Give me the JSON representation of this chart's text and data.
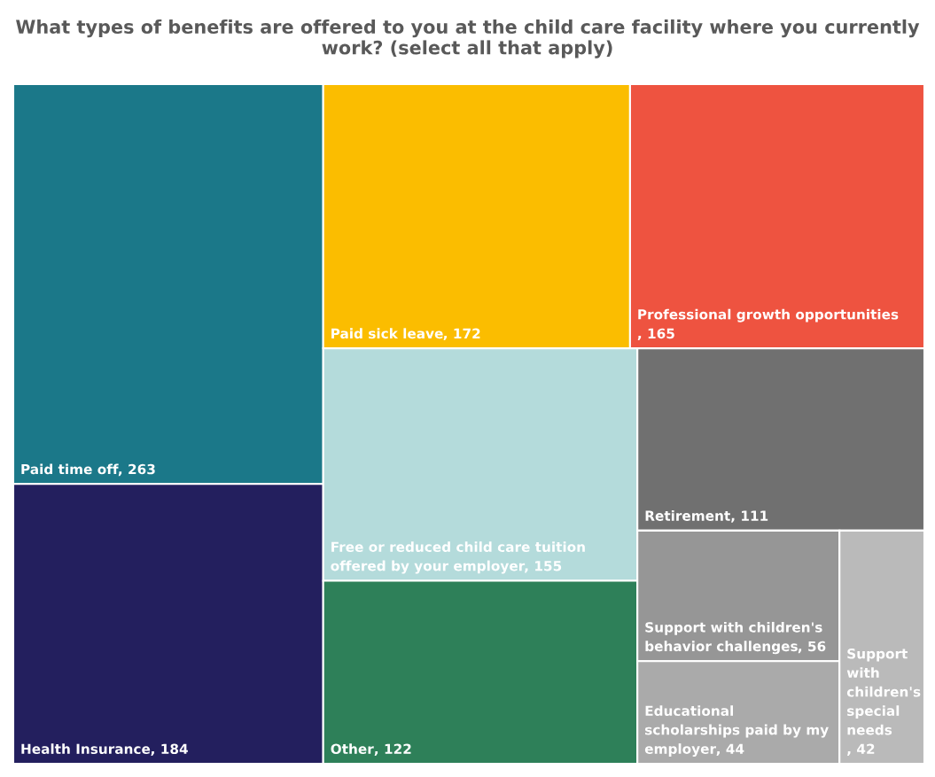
{
  "chart_data": {
    "type": "other",
    "title": "What types of benefits are offered to you at the child care facility where you currently work? (select all that apply)",
    "categories": [
      "Paid time off",
      "Health Insurance",
      "Paid sick leave",
      "Professional growth opportunities",
      "Free or reduced child care tuition offered by your employer",
      "Other",
      "Retirement",
      "Support with children's behavior challenges",
      "Educational scholarships paid by my employer",
      "Support with children's special needs"
    ],
    "value_labels": [
      ", 263",
      ", 184",
      ", 172",
      ", 165",
      ", 155",
      ", 122",
      ", 111",
      ", 56",
      ", 44",
      ", 42"
    ],
    "values": [
      263,
      184,
      172,
      165,
      155,
      122,
      111,
      56,
      44,
      42
    ],
    "colors": [
      "#1b7889",
      "#231f5e",
      "#fbbd00",
      "#ee5340",
      "#b4dbdb",
      "#2e8059",
      "#707070",
      "#969696",
      "#aaaaaa",
      "#bababa"
    ]
  }
}
